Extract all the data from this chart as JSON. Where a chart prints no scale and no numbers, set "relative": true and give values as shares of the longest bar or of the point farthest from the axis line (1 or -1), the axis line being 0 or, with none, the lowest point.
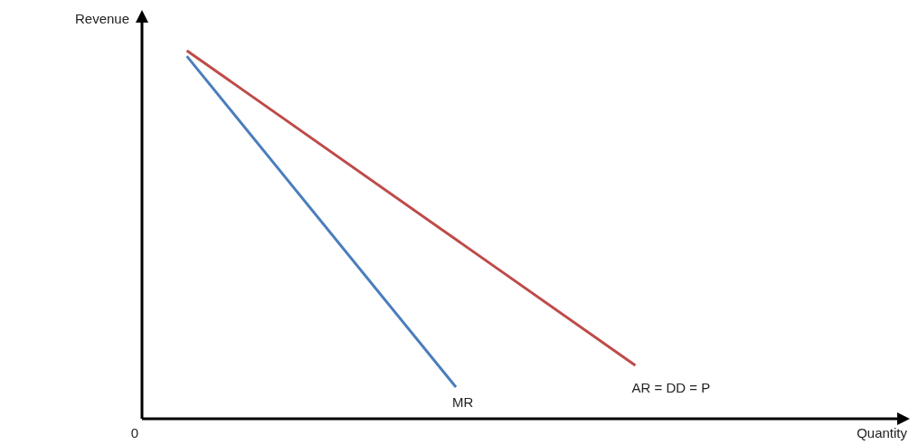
{
  "chart_data": {
    "type": "line",
    "relative": true,
    "xlabel": "Quantity",
    "ylabel": "Revenue",
    "annotations": [
      "0"
    ],
    "legend": false,
    "marker": "none",
    "line_style": "solid",
    "categories": [
      null,
      null,
      null,
      null,
      null,
      null,
      null,
      null,
      null,
      null,
      null,
      null,
      null,
      null,
      null,
      null,
      null,
      null
    ],
    "series": [
      {
        "name": "MR",
        "color": "#4a7ebb",
        "values": [
          null,
          0.985,
          null,
          null,
          null,
          null,
          null,
          0.086,
          null,
          null,
          null,
          null,
          null,
          null,
          null,
          null,
          null,
          null
        ]
      },
      {
        "name": "AR = DD = P",
        "color": "#be4b48",
        "values": [
          null,
          1,
          null,
          null,
          null,
          null,
          null,
          null,
          null,
          null,
          null,
          0.145,
          null,
          null,
          null,
          null,
          null,
          null
        ]
      }
    ]
  }
}
